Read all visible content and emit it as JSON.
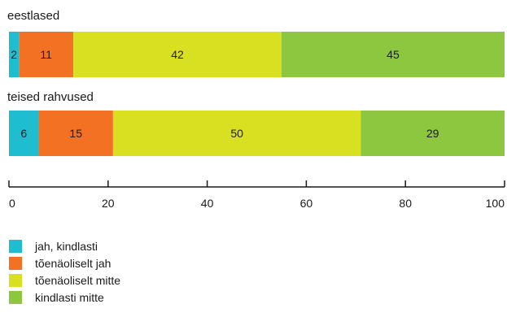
{
  "chart_data": {
    "type": "bar",
    "orientation": "horizontal",
    "stacked": true,
    "categories": [
      "eestlased",
      "teised rahvused"
    ],
    "series": [
      {
        "name": "jah, kindlasti",
        "color": "#1fbdd0",
        "values": [
          2,
          6
        ]
      },
      {
        "name": "tõenäoliselt jah",
        "color": "#f37123",
        "values": [
          11,
          15
        ]
      },
      {
        "name": "tõenäoliselt mitte",
        "color": "#d9e021",
        "values": [
          42,
          50
        ]
      },
      {
        "name": "kindlasti mitte",
        "color": "#8dc63f",
        "values": [
          45,
          29
        ]
      }
    ],
    "xlim": [
      0,
      100
    ],
    "xticks": [
      0,
      20,
      40,
      60,
      80,
      100
    ],
    "grid": false,
    "legend_position": "bottom-left"
  }
}
